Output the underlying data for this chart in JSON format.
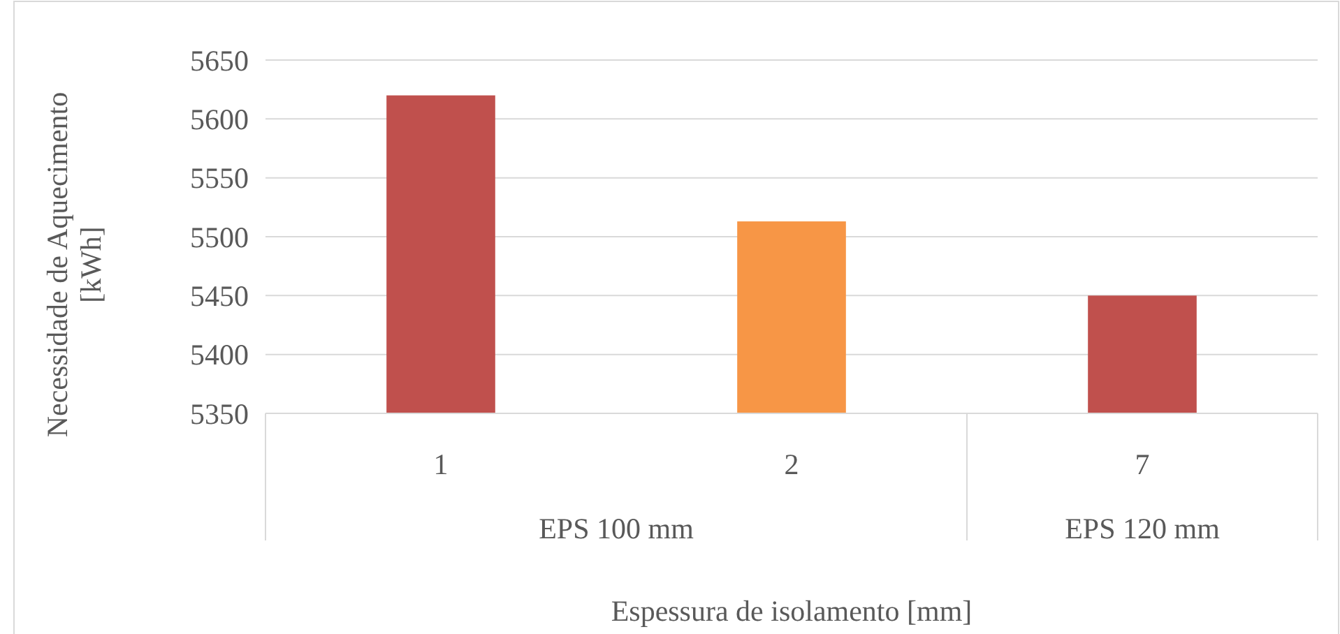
{
  "chart_data": {
    "type": "bar",
    "xlabel": "Espessura de isolamento [mm]",
    "ylabel": "Necessidade de Aquecimento [kWh]",
    "categories": [
      "1",
      "2",
      "7"
    ],
    "values": [
      5620,
      5513,
      5450
    ],
    "colors": [
      "#c0504d",
      "#f79646",
      "#c0504d"
    ],
    "ylim": [
      5350,
      5650
    ],
    "yticks": [
      5350,
      5400,
      5450,
      5500,
      5550,
      5600,
      5650
    ],
    "grid": "y",
    "annotations": [
      "EPS 100 mm",
      "EPS 120 mm"
    ]
  }
}
